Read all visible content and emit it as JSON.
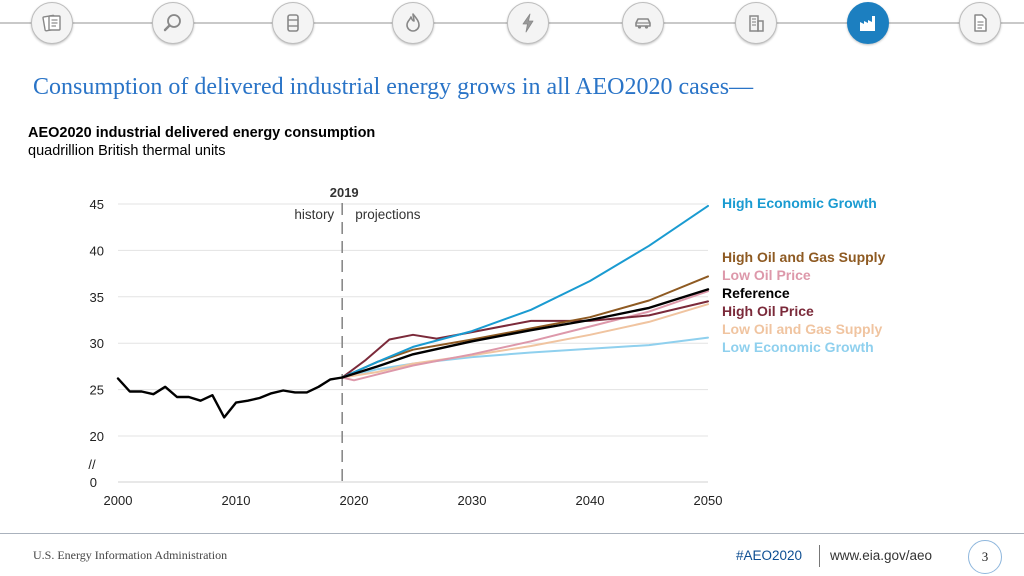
{
  "nav": {
    "icons": [
      {
        "name": "documents-icon"
      },
      {
        "name": "magnifier-icon"
      },
      {
        "name": "oil-barrel-icon"
      },
      {
        "name": "flame-icon"
      },
      {
        "name": "lightning-icon"
      },
      {
        "name": "car-icon"
      },
      {
        "name": "buildings-icon"
      },
      {
        "name": "industry-icon",
        "active": true
      },
      {
        "name": "document-icon"
      }
    ]
  },
  "header": {
    "title": "Consumption of delivered industrial energy grows in all AEO2020 cases—"
  },
  "chart_data": {
    "type": "line",
    "title": "AEO2020 industrial delivered energy consumption",
    "ylabel": "quadrillion British thermal units",
    "xlabel": "",
    "x_ticks": [
      "2000",
      "2010",
      "2020",
      "2030",
      "2040",
      "2050"
    ],
    "y_ticks": [
      "20",
      "25",
      "30",
      "35",
      "40",
      "45"
    ],
    "y_zero_label": "0",
    "axis_break": "//",
    "ylim": [
      18,
      46
    ],
    "xlim": [
      2000,
      2050
    ],
    "divider": {
      "year": 2019,
      "label": "2019",
      "left": "history",
      "right": "projections"
    },
    "history": {
      "name": "History",
      "color": "#000000",
      "points": [
        [
          2000,
          26.2
        ],
        [
          2001,
          24.8
        ],
        [
          2002,
          24.8
        ],
        [
          2003,
          24.5
        ],
        [
          2004,
          25.3
        ],
        [
          2005,
          24.2
        ],
        [
          2006,
          24.2
        ],
        [
          2007,
          23.8
        ],
        [
          2008,
          24.4
        ],
        [
          2009,
          22.0
        ],
        [
          2010,
          23.6
        ],
        [
          2011,
          23.8
        ],
        [
          2012,
          24.1
        ],
        [
          2013,
          24.6
        ],
        [
          2014,
          24.9
        ],
        [
          2015,
          24.7
        ],
        [
          2016,
          24.7
        ],
        [
          2017,
          25.3
        ],
        [
          2018,
          26.1
        ],
        [
          2019,
          26.3
        ]
      ]
    },
    "series": [
      {
        "name": "High Economic Growth",
        "color": "#1a9bd1",
        "points": [
          [
            2019,
            26.3
          ],
          [
            2022,
            28.0
          ],
          [
            2025,
            29.6
          ],
          [
            2030,
            31.3
          ],
          [
            2035,
            33.6
          ],
          [
            2040,
            36.7
          ],
          [
            2045,
            40.5
          ],
          [
            2050,
            44.8
          ]
        ]
      },
      {
        "name": "High Oil and Gas Supply",
        "color": "#8e5a22",
        "points": [
          [
            2019,
            26.3
          ],
          [
            2022,
            28.0
          ],
          [
            2025,
            29.3
          ],
          [
            2030,
            30.4
          ],
          [
            2035,
            31.6
          ],
          [
            2040,
            32.8
          ],
          [
            2045,
            34.6
          ],
          [
            2050,
            37.2
          ]
        ]
      },
      {
        "name": "Low Oil Price",
        "color": "#dd98aa",
        "points": [
          [
            2019,
            26.3
          ],
          [
            2020,
            26.0
          ],
          [
            2025,
            27.6
          ],
          [
            2030,
            28.8
          ],
          [
            2035,
            30.2
          ],
          [
            2040,
            31.8
          ],
          [
            2045,
            33.4
          ],
          [
            2050,
            35.6
          ]
        ]
      },
      {
        "name": "Reference",
        "color": "#000000",
        "points": [
          [
            2019,
            26.3
          ],
          [
            2022,
            27.5
          ],
          [
            2025,
            28.8
          ],
          [
            2030,
            30.2
          ],
          [
            2035,
            31.4
          ],
          [
            2040,
            32.5
          ],
          [
            2045,
            33.8
          ],
          [
            2050,
            35.8
          ]
        ]
      },
      {
        "name": "High Oil Price",
        "color": "#7b2a3a",
        "points": [
          [
            2019,
            26.3
          ],
          [
            2021,
            28.2
          ],
          [
            2023,
            30.4
          ],
          [
            2025,
            30.9
          ],
          [
            2027,
            30.5
          ],
          [
            2030,
            31.2
          ],
          [
            2035,
            32.4
          ],
          [
            2040,
            32.4
          ],
          [
            2045,
            33.0
          ],
          [
            2050,
            34.5
          ]
        ]
      },
      {
        "name": "Low Oil and Gas Supply",
        "color": "#f0c4a0",
        "points": [
          [
            2019,
            26.3
          ],
          [
            2022,
            26.9
          ],
          [
            2025,
            27.8
          ],
          [
            2030,
            28.7
          ],
          [
            2035,
            29.7
          ],
          [
            2040,
            30.9
          ],
          [
            2045,
            32.3
          ],
          [
            2050,
            34.2
          ]
        ]
      },
      {
        "name": "Low Economic Growth",
        "color": "#8fd0ee",
        "points": [
          [
            2019,
            26.3
          ],
          [
            2022,
            27.2
          ],
          [
            2025,
            27.8
          ],
          [
            2030,
            28.5
          ],
          [
            2035,
            29.0
          ],
          [
            2040,
            29.4
          ],
          [
            2045,
            29.8
          ],
          [
            2050,
            30.6
          ]
        ]
      }
    ]
  },
  "footer": {
    "org": "U.S. Energy Information Administration",
    "tag": "#AEO2020",
    "url": "www.eia.gov/aeo",
    "page": "3"
  }
}
